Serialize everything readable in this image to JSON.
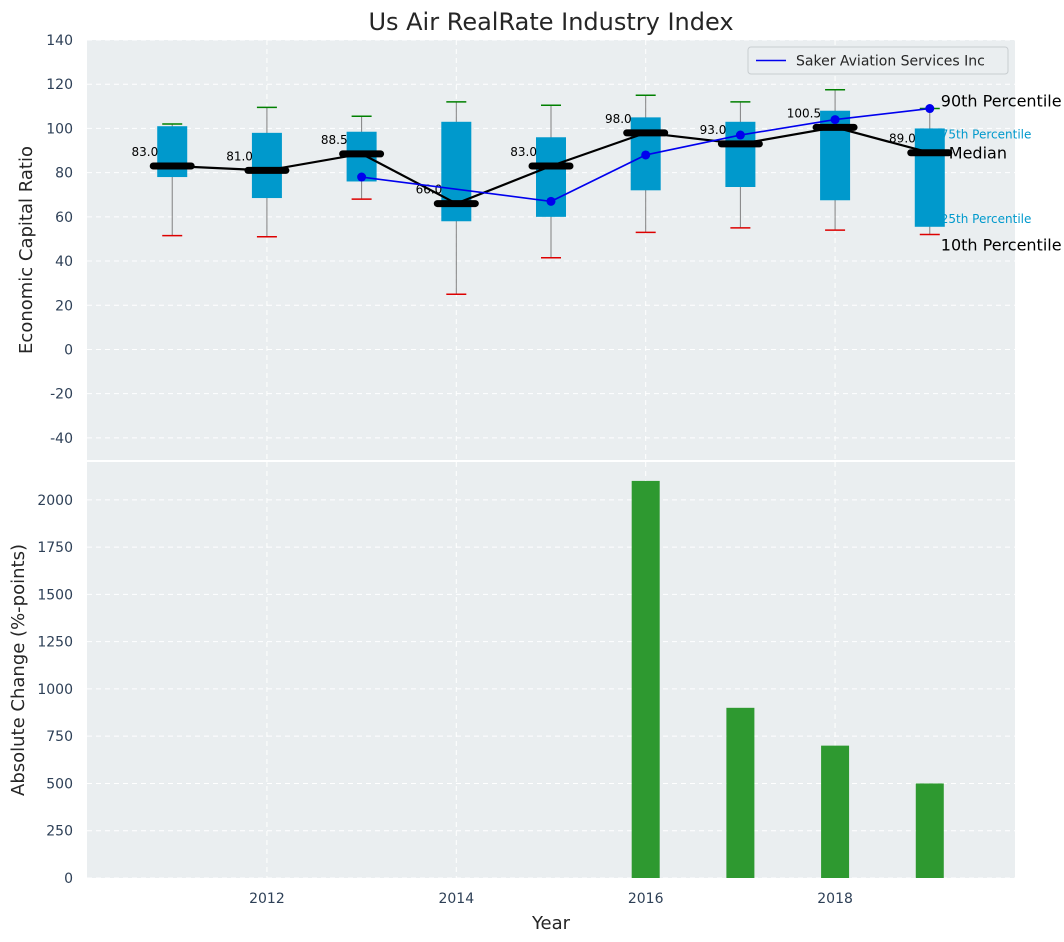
{
  "chart_data": [
    {
      "type": "box",
      "title": "Us Air RealRate Industry Index",
      "ylabel": "Economic Capital Ratio",
      "ylim": [
        -50,
        140
      ],
      "yticks": [
        -40,
        -20,
        0,
        20,
        40,
        60,
        80,
        100,
        120,
        140
      ],
      "grid": true,
      "legend": {
        "position": "top-right",
        "entries": [
          "Saker Aviation Services Inc"
        ]
      },
      "years": [
        2011,
        2012,
        2013,
        2014,
        2015,
        2016,
        2017,
        2018,
        2019
      ],
      "p10": [
        51.5,
        51,
        68,
        25,
        41.5,
        53,
        55,
        54,
        52
      ],
      "p25": [
        78,
        68.5,
        76,
        58,
        60,
        72,
        73.5,
        67.5,
        55.5
      ],
      "median": [
        83,
        81,
        88.5,
        66,
        83,
        98,
        93,
        100.5,
        89
      ],
      "median_labels": [
        "83.0",
        "81.0",
        "88.5",
        "66.0",
        "83.0",
        "98.0",
        "93.0",
        "100.5",
        "89.0"
      ],
      "p75": [
        101,
        98,
        98.5,
        103,
        96,
        105,
        103,
        108,
        100
      ],
      "p90": [
        102,
        109.5,
        105.5,
        112,
        110.5,
        115,
        112,
        117.5,
        109
      ],
      "series": [
        {
          "name": "Saker Aviation Services Inc",
          "color": "#0000ee",
          "x": [
            2013,
            2015,
            2016,
            2017,
            2018,
            2019
          ],
          "values": [
            78,
            67,
            88,
            97,
            104,
            109
          ]
        }
      ],
      "annotations": {
        "p90": "90th Percentile",
        "p75": "75th Percentile",
        "median": "Median",
        "p25": "25th Percentile",
        "p10": "10th Percentile"
      },
      "colors": {
        "box": "#0099cc",
        "median": "#000000",
        "p90_cap": "#008000",
        "p10_cap": "#dd0000",
        "background": "#eaeef0"
      }
    },
    {
      "type": "bar",
      "xlabel": "Year",
      "ylabel": "Absolute Change (%-points)",
      "ylim": [
        0,
        2200
      ],
      "yticks": [
        0,
        250,
        500,
        750,
        1000,
        1250,
        1500,
        1750,
        2000
      ],
      "xticks": [
        2012,
        2014,
        2016,
        2018
      ],
      "xlim": [
        2010.1,
        2019.9
      ],
      "grid": true,
      "x": [
        2016,
        2017,
        2018,
        2019
      ],
      "values": [
        2100,
        900,
        700,
        500
      ],
      "color": "#2e9930"
    }
  ]
}
